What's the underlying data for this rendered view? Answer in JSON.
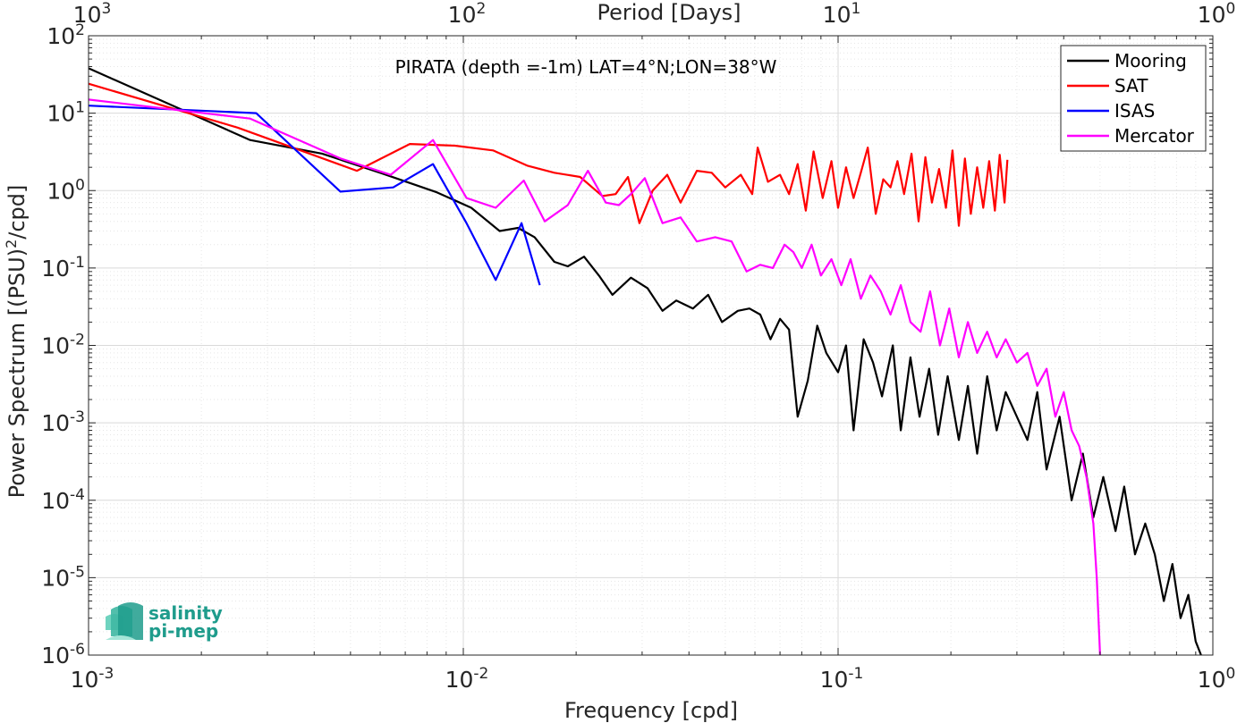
{
  "chart_data": {
    "type": "line",
    "title": "",
    "annotation": "PIRATA (depth =-1m) LAT=4°N;LON=38°W",
    "xlabel": "Frequency [cpd]",
    "ylabel_main": "Power Spectrum [(PSU)",
    "ylabel_sup": "2",
    "ylabel_tail": "/cpd]",
    "top_xlabel": "Period [Days]",
    "x_scale": "log",
    "y_scale": "log",
    "xlim": [
      0.001,
      1
    ],
    "ylim": [
      1e-06,
      100
    ],
    "grid": true,
    "legend_position": "top-right",
    "x_ticks": [
      {
        "value": 0.001,
        "base": "10",
        "exp": "-3"
      },
      {
        "value": 0.01,
        "base": "10",
        "exp": "-2"
      },
      {
        "value": 0.1,
        "base": "10",
        "exp": "-1"
      },
      {
        "value": 1,
        "base": "10",
        "exp": "0"
      }
    ],
    "top_ticks": [
      {
        "freq": 0.001,
        "base": "10",
        "exp": "3"
      },
      {
        "freq": 0.01,
        "base": "10",
        "exp": "2"
      },
      {
        "freq": 0.1,
        "base": "10",
        "exp": "1"
      },
      {
        "freq": 1,
        "base": "10",
        "exp": "0"
      }
    ],
    "y_ticks": [
      {
        "value": 100,
        "base": "10",
        "exp": "2"
      },
      {
        "value": 10,
        "base": "10",
        "exp": "1"
      },
      {
        "value": 1,
        "base": "10",
        "exp": "0"
      },
      {
        "value": 0.1,
        "base": "10",
        "exp": "-1"
      },
      {
        "value": 0.01,
        "base": "10",
        "exp": "-2"
      },
      {
        "value": 0.001,
        "base": "10",
        "exp": "-3"
      },
      {
        "value": 0.0001,
        "base": "10",
        "exp": "-4"
      },
      {
        "value": 1e-05,
        "base": "10",
        "exp": "-5"
      },
      {
        "value": 1e-06,
        "base": "10",
        "exp": "-6"
      }
    ],
    "series": [
      {
        "name": "Mooring",
        "color": "#000000",
        "points": [
          [
            0.001,
            38
          ],
          [
            0.0027,
            4.5
          ],
          [
            0.0042,
            3.0
          ],
          [
            0.006,
            1.7
          ],
          [
            0.0085,
            0.95
          ],
          [
            0.0105,
            0.6
          ],
          [
            0.0125,
            0.3
          ],
          [
            0.014,
            0.33
          ],
          [
            0.0155,
            0.25
          ],
          [
            0.0175,
            0.12
          ],
          [
            0.019,
            0.105
          ],
          [
            0.021,
            0.14
          ],
          [
            0.023,
            0.08
          ],
          [
            0.025,
            0.045
          ],
          [
            0.028,
            0.075
          ],
          [
            0.031,
            0.055
          ],
          [
            0.034,
            0.028
          ],
          [
            0.037,
            0.038
          ],
          [
            0.041,
            0.03
          ],
          [
            0.045,
            0.045
          ],
          [
            0.049,
            0.02
          ],
          [
            0.054,
            0.028
          ],
          [
            0.058,
            0.03
          ],
          [
            0.062,
            0.025
          ],
          [
            0.066,
            0.012
          ],
          [
            0.07,
            0.022
          ],
          [
            0.074,
            0.016
          ],
          [
            0.078,
            0.0012
          ],
          [
            0.083,
            0.0035
          ],
          [
            0.088,
            0.018
          ],
          [
            0.093,
            0.008
          ],
          [
            0.1,
            0.0045
          ],
          [
            0.105,
            0.01
          ],
          [
            0.11,
            0.0008
          ],
          [
            0.117,
            0.012
          ],
          [
            0.124,
            0.006
          ],
          [
            0.131,
            0.0022
          ],
          [
            0.14,
            0.01
          ],
          [
            0.147,
            0.0008
          ],
          [
            0.156,
            0.007
          ],
          [
            0.165,
            0.0012
          ],
          [
            0.175,
            0.005
          ],
          [
            0.185,
            0.0007
          ],
          [
            0.196,
            0.004
          ],
          [
            0.21,
            0.0006
          ],
          [
            0.222,
            0.003
          ],
          [
            0.235,
            0.0004
          ],
          [
            0.25,
            0.004
          ],
          [
            0.265,
            0.0008
          ],
          [
            0.28,
            0.0025
          ],
          [
            0.3,
            0.0012
          ],
          [
            0.32,
            0.0006
          ],
          [
            0.34,
            0.0025
          ],
          [
            0.36,
            0.00025
          ],
          [
            0.39,
            0.0012
          ],
          [
            0.42,
            0.0001
          ],
          [
            0.45,
            0.0004
          ],
          [
            0.48,
            6e-05
          ],
          [
            0.51,
            0.0002
          ],
          [
            0.55,
            4e-05
          ],
          [
            0.58,
            0.00015
          ],
          [
            0.62,
            2e-05
          ],
          [
            0.66,
            5e-05
          ],
          [
            0.7,
            2e-05
          ],
          [
            0.74,
            5e-06
          ],
          [
            0.78,
            1.5e-05
          ],
          [
            0.82,
            3e-06
          ],
          [
            0.86,
            6e-06
          ],
          [
            0.9,
            1.5e-06
          ],
          [
            0.93,
            1e-06
          ]
        ]
      },
      {
        "name": "SAT",
        "color": "#ff0000",
        "points": [
          [
            0.001,
            24
          ],
          [
            0.0025,
            6.5
          ],
          [
            0.0052,
            1.8
          ],
          [
            0.0072,
            4.0
          ],
          [
            0.0095,
            3.8
          ],
          [
            0.012,
            3.3
          ],
          [
            0.0148,
            2.1
          ],
          [
            0.0175,
            1.7
          ],
          [
            0.0205,
            1.5
          ],
          [
            0.0235,
            0.85
          ],
          [
            0.0255,
            0.9
          ],
          [
            0.0275,
            1.5
          ],
          [
            0.0295,
            0.38
          ],
          [
            0.032,
            1.0
          ],
          [
            0.035,
            1.6
          ],
          [
            0.038,
            0.7
          ],
          [
            0.042,
            1.8
          ],
          [
            0.046,
            1.7
          ],
          [
            0.05,
            1.1
          ],
          [
            0.055,
            1.6
          ],
          [
            0.059,
            0.9
          ],
          [
            0.061,
            3.6
          ],
          [
            0.065,
            1.3
          ],
          [
            0.07,
            1.6
          ],
          [
            0.074,
            0.9
          ],
          [
            0.078,
            2.2
          ],
          [
            0.082,
            0.55
          ],
          [
            0.086,
            3.2
          ],
          [
            0.091,
            0.8
          ],
          [
            0.096,
            2.4
          ],
          [
            0.1,
            0.6
          ],
          [
            0.105,
            2.0
          ],
          [
            0.11,
            0.8
          ],
          [
            0.115,
            1.7
          ],
          [
            0.12,
            3.6
          ],
          [
            0.126,
            0.5
          ],
          [
            0.132,
            1.4
          ],
          [
            0.138,
            1.1
          ],
          [
            0.144,
            2.4
          ],
          [
            0.15,
            0.9
          ],
          [
            0.157,
            3.0
          ],
          [
            0.164,
            0.4
          ],
          [
            0.171,
            2.7
          ],
          [
            0.178,
            0.7
          ],
          [
            0.186,
            1.9
          ],
          [
            0.194,
            0.6
          ],
          [
            0.202,
            3.3
          ],
          [
            0.21,
            0.35
          ],
          [
            0.218,
            2.6
          ],
          [
            0.226,
            0.5
          ],
          [
            0.235,
            2.0
          ],
          [
            0.244,
            0.6
          ],
          [
            0.253,
            2.4
          ],
          [
            0.262,
            0.55
          ],
          [
            0.27,
            2.9
          ],
          [
            0.278,
            0.7
          ],
          [
            0.283,
            2.5
          ]
        ]
      },
      {
        "name": "ISAS",
        "color": "#0000ff",
        "points": [
          [
            0.001,
            12.5
          ],
          [
            0.0028,
            10.0
          ],
          [
            0.0047,
            0.97
          ],
          [
            0.0065,
            1.1
          ],
          [
            0.0083,
            2.2
          ],
          [
            0.0102,
            0.38
          ],
          [
            0.0122,
            0.07
          ],
          [
            0.0143,
            0.38
          ],
          [
            0.016,
            0.06
          ]
        ]
      },
      {
        "name": "Mercator",
        "color": "#ff00ff",
        "points": [
          [
            0.001,
            15
          ],
          [
            0.0027,
            8.5
          ],
          [
            0.0047,
            2.6
          ],
          [
            0.0064,
            1.6
          ],
          [
            0.0083,
            4.5
          ],
          [
            0.0102,
            0.8
          ],
          [
            0.0122,
            0.6
          ],
          [
            0.0145,
            1.35
          ],
          [
            0.0165,
            0.4
          ],
          [
            0.019,
            0.65
          ],
          [
            0.0215,
            1.8
          ],
          [
            0.024,
            0.7
          ],
          [
            0.026,
            0.65
          ],
          [
            0.028,
            0.9
          ],
          [
            0.0305,
            1.45
          ],
          [
            0.034,
            0.38
          ],
          [
            0.038,
            0.45
          ],
          [
            0.042,
            0.22
          ],
          [
            0.047,
            0.25
          ],
          [
            0.052,
            0.22
          ],
          [
            0.057,
            0.09
          ],
          [
            0.062,
            0.11
          ],
          [
            0.067,
            0.1
          ],
          [
            0.072,
            0.2
          ],
          [
            0.076,
            0.16
          ],
          [
            0.08,
            0.1
          ],
          [
            0.085,
            0.2
          ],
          [
            0.09,
            0.08
          ],
          [
            0.096,
            0.13
          ],
          [
            0.102,
            0.06
          ],
          [
            0.108,
            0.13
          ],
          [
            0.115,
            0.04
          ],
          [
            0.122,
            0.08
          ],
          [
            0.13,
            0.05
          ],
          [
            0.138,
            0.025
          ],
          [
            0.147,
            0.06
          ],
          [
            0.156,
            0.02
          ],
          [
            0.166,
            0.015
          ],
          [
            0.176,
            0.05
          ],
          [
            0.187,
            0.01
          ],
          [
            0.198,
            0.03
          ],
          [
            0.21,
            0.007
          ],
          [
            0.222,
            0.02
          ],
          [
            0.235,
            0.008
          ],
          [
            0.25,
            0.015
          ],
          [
            0.265,
            0.007
          ],
          [
            0.28,
            0.012
          ],
          [
            0.3,
            0.006
          ],
          [
            0.32,
            0.008
          ],
          [
            0.34,
            0.003
          ],
          [
            0.36,
            0.005
          ],
          [
            0.38,
            0.0012
          ],
          [
            0.4,
            0.0025
          ],
          [
            0.42,
            0.0008
          ],
          [
            0.44,
            0.0005
          ],
          [
            0.46,
            0.0002
          ],
          [
            0.48,
            5e-05
          ],
          [
            0.49,
            1e-05
          ],
          [
            0.5,
            1e-06
          ]
        ]
      }
    ]
  },
  "logo": {
    "line1": "salinity",
    "line2": "pi-mep"
  }
}
